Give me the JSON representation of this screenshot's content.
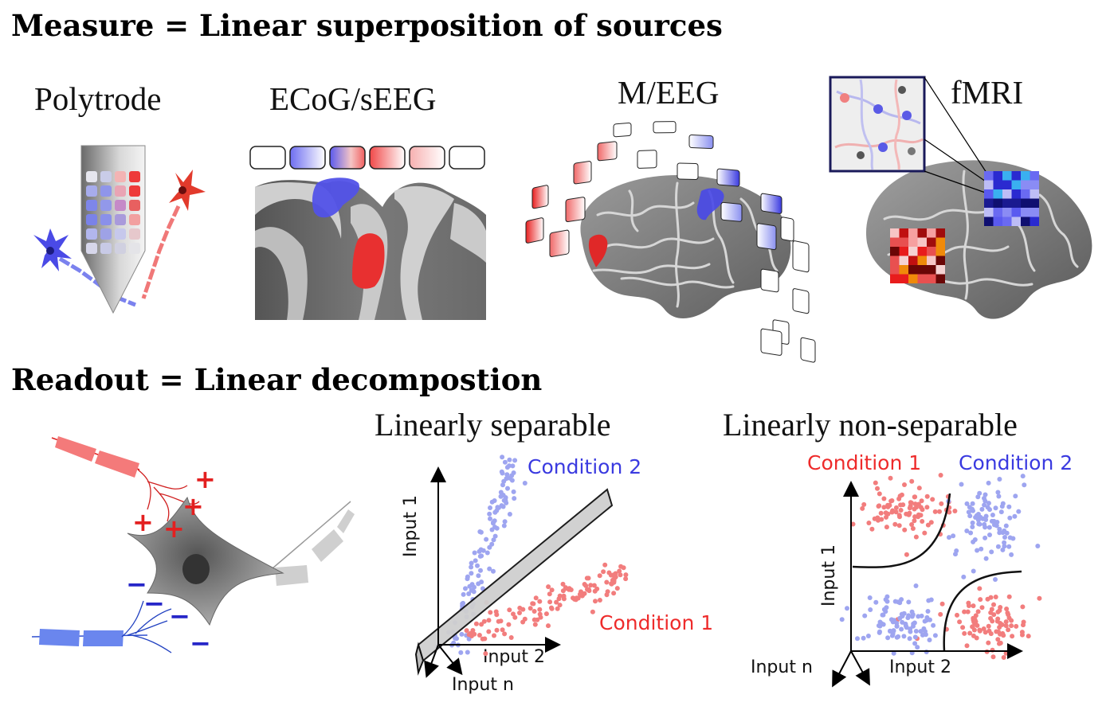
{
  "headings": {
    "measure": "Measure = Linear superposition of sources",
    "readout": "Readout = Linear decompostion"
  },
  "modalities": {
    "polytrode": "Polytrode",
    "ecog": "ECoG/sEEG",
    "meeg": "M/EEG",
    "fmri": "fMRI"
  },
  "readout": {
    "separable": {
      "title": "Linearly separable",
      "condition_1": "Condition 1",
      "condition_2": "Condition 2",
      "axis_1": "Input 1",
      "axis_2": "Input 2",
      "axis_n": "Input n"
    },
    "nonseparable": {
      "title": "Linearly non-separable",
      "condition_1": "Condition 1",
      "condition_2": "Condition 2",
      "axis_1": "Input 1",
      "axis_2": "Input 2",
      "axis_n": "Input n"
    },
    "neuron": {
      "plus_sign": "+",
      "minus_sign": "−"
    }
  },
  "colors": {
    "condition_1": "#f27d7d",
    "condition_2": "#9ea5f0",
    "condition_1_label": "#ee2b2b",
    "condition_2_label": "#3a3ae0",
    "red_source": "#e82323",
    "blue_source": "#4a4ae6",
    "cortex": "#8a8a8a",
    "cortex_sulci": "#cfcfcf"
  },
  "icons": {
    "neuron_red": "pyramidal-neuron-icon",
    "neuron_blue": "pyramidal-neuron-icon",
    "brain": "brain-hemisphere-icon",
    "electrode": "polytrode-shank-icon",
    "separating_plane": "hyperplane-icon"
  }
}
